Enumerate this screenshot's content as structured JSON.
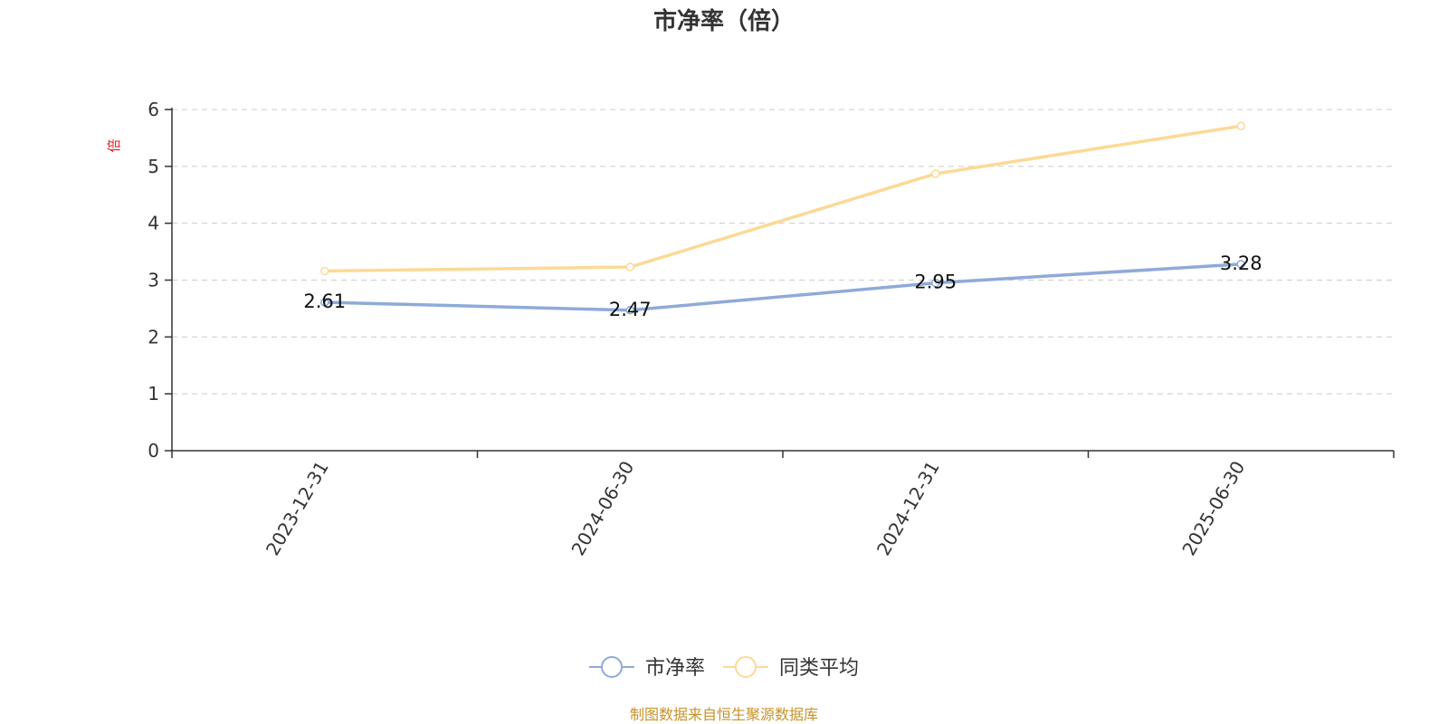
{
  "chart_data": {
    "type": "line",
    "title": "市净率（倍）",
    "ylabel": "倍",
    "categories": [
      "2023-12-31",
      "2024-06-30",
      "2024-12-31",
      "2025-06-30"
    ],
    "ylim": [
      0,
      6
    ],
    "yticks": [
      0,
      1,
      2,
      3,
      4,
      5,
      6
    ],
    "grid": true,
    "legend_position": "bottom-center",
    "series": [
      {
        "name": "市净率",
        "values": [
          2.61,
          2.47,
          2.95,
          3.28
        ],
        "color": "#8eaad8",
        "show_labels": true
      },
      {
        "name": "同类平均",
        "values": [
          3.16,
          3.23,
          4.87,
          5.71
        ],
        "color": "#fcd996",
        "show_labels": false
      }
    ]
  },
  "source": "制图数据来自恒生聚源数据库"
}
